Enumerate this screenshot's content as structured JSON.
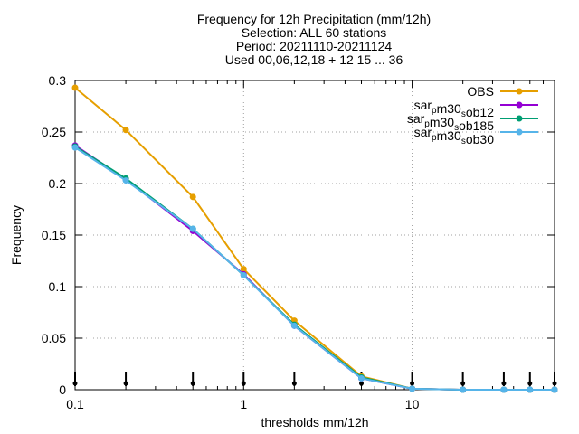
{
  "chart_data": {
    "type": "line",
    "title_lines": [
      "Frequency  for 12h Precipitation (mm/12h)",
      "Selection: ALL      60 stations",
      "Period: 20211110-20211124",
      "Used 00,06,12,18 + 12 15 ... 36"
    ],
    "xlabel": "thresholds mm/12h",
    "ylabel": "Frequency",
    "x_scale": "log",
    "xlim": [
      0.1,
      70
    ],
    "ylim": [
      0,
      0.3
    ],
    "x_ticks": [
      {
        "value": 0.1,
        "label": "0.1"
      },
      {
        "value": 1,
        "label": "1"
      },
      {
        "value": 10,
        "label": "10"
      }
    ],
    "y_ticks": [
      {
        "value": 0,
        "label": "0"
      },
      {
        "value": 0.05,
        "label": "0.05"
      },
      {
        "value": 0.1,
        "label": "0.1"
      },
      {
        "value": 0.15,
        "label": "0.15"
      },
      {
        "value": 0.2,
        "label": "0.2"
      },
      {
        "value": 0.25,
        "label": "0.25"
      },
      {
        "value": 0.3,
        "label": "0.3"
      }
    ],
    "grid": true,
    "legend_position": "top-right",
    "x": [
      0.1,
      0.2,
      0.5,
      1,
      2,
      5,
      10,
      20,
      35,
      50,
      70
    ],
    "series": [
      {
        "name": "OBS",
        "legend": {
          "pre": "OBS",
          "sub": "",
          "post": ""
        },
        "color": "#e69f00",
        "marker": "filled-circle",
        "values": [
          0.293,
          0.252,
          0.187,
          0.117,
          0.067,
          0.013,
          0.001,
          0.0,
          0.0,
          0.0,
          0.0
        ]
      },
      {
        "name": "sar_pm30_sob12",
        "legend": {
          "pre": "sar",
          "sub1": "p",
          "mid": "m30",
          "sub2": "s",
          "post": "ob12"
        },
        "color": "#9400d3",
        "marker": "filled-circle",
        "values": [
          0.237,
          0.204,
          0.154,
          0.112,
          0.062,
          0.011,
          0.001,
          0.0,
          0.0,
          0.0,
          0.0
        ]
      },
      {
        "name": "sar_pm30_sob185",
        "legend": {
          "pre": "sar",
          "sub1": "p",
          "mid": "m30",
          "sub2": "s",
          "post": "ob185"
        },
        "color": "#009e73",
        "marker": "filled-circle",
        "values": [
          0.236,
          0.205,
          0.156,
          0.111,
          0.063,
          0.012,
          0.001,
          0.0,
          0.0,
          0.0,
          0.0
        ]
      },
      {
        "name": "sar_pm30_sob30",
        "legend": {
          "pre": "sar",
          "sub1": "p",
          "mid": "m30",
          "sub2": "s",
          "post": "ob30"
        },
        "color": "#56b4e9",
        "marker": "filled-circle",
        "values": [
          0.235,
          0.203,
          0.156,
          0.111,
          0.062,
          0.011,
          0.001,
          0.0,
          0.0,
          0.0,
          0.0
        ]
      }
    ],
    "threshold_markers_x": [
      0.1,
      0.2,
      0.5,
      1,
      2,
      5,
      10,
      20,
      35,
      50,
      70
    ]
  }
}
